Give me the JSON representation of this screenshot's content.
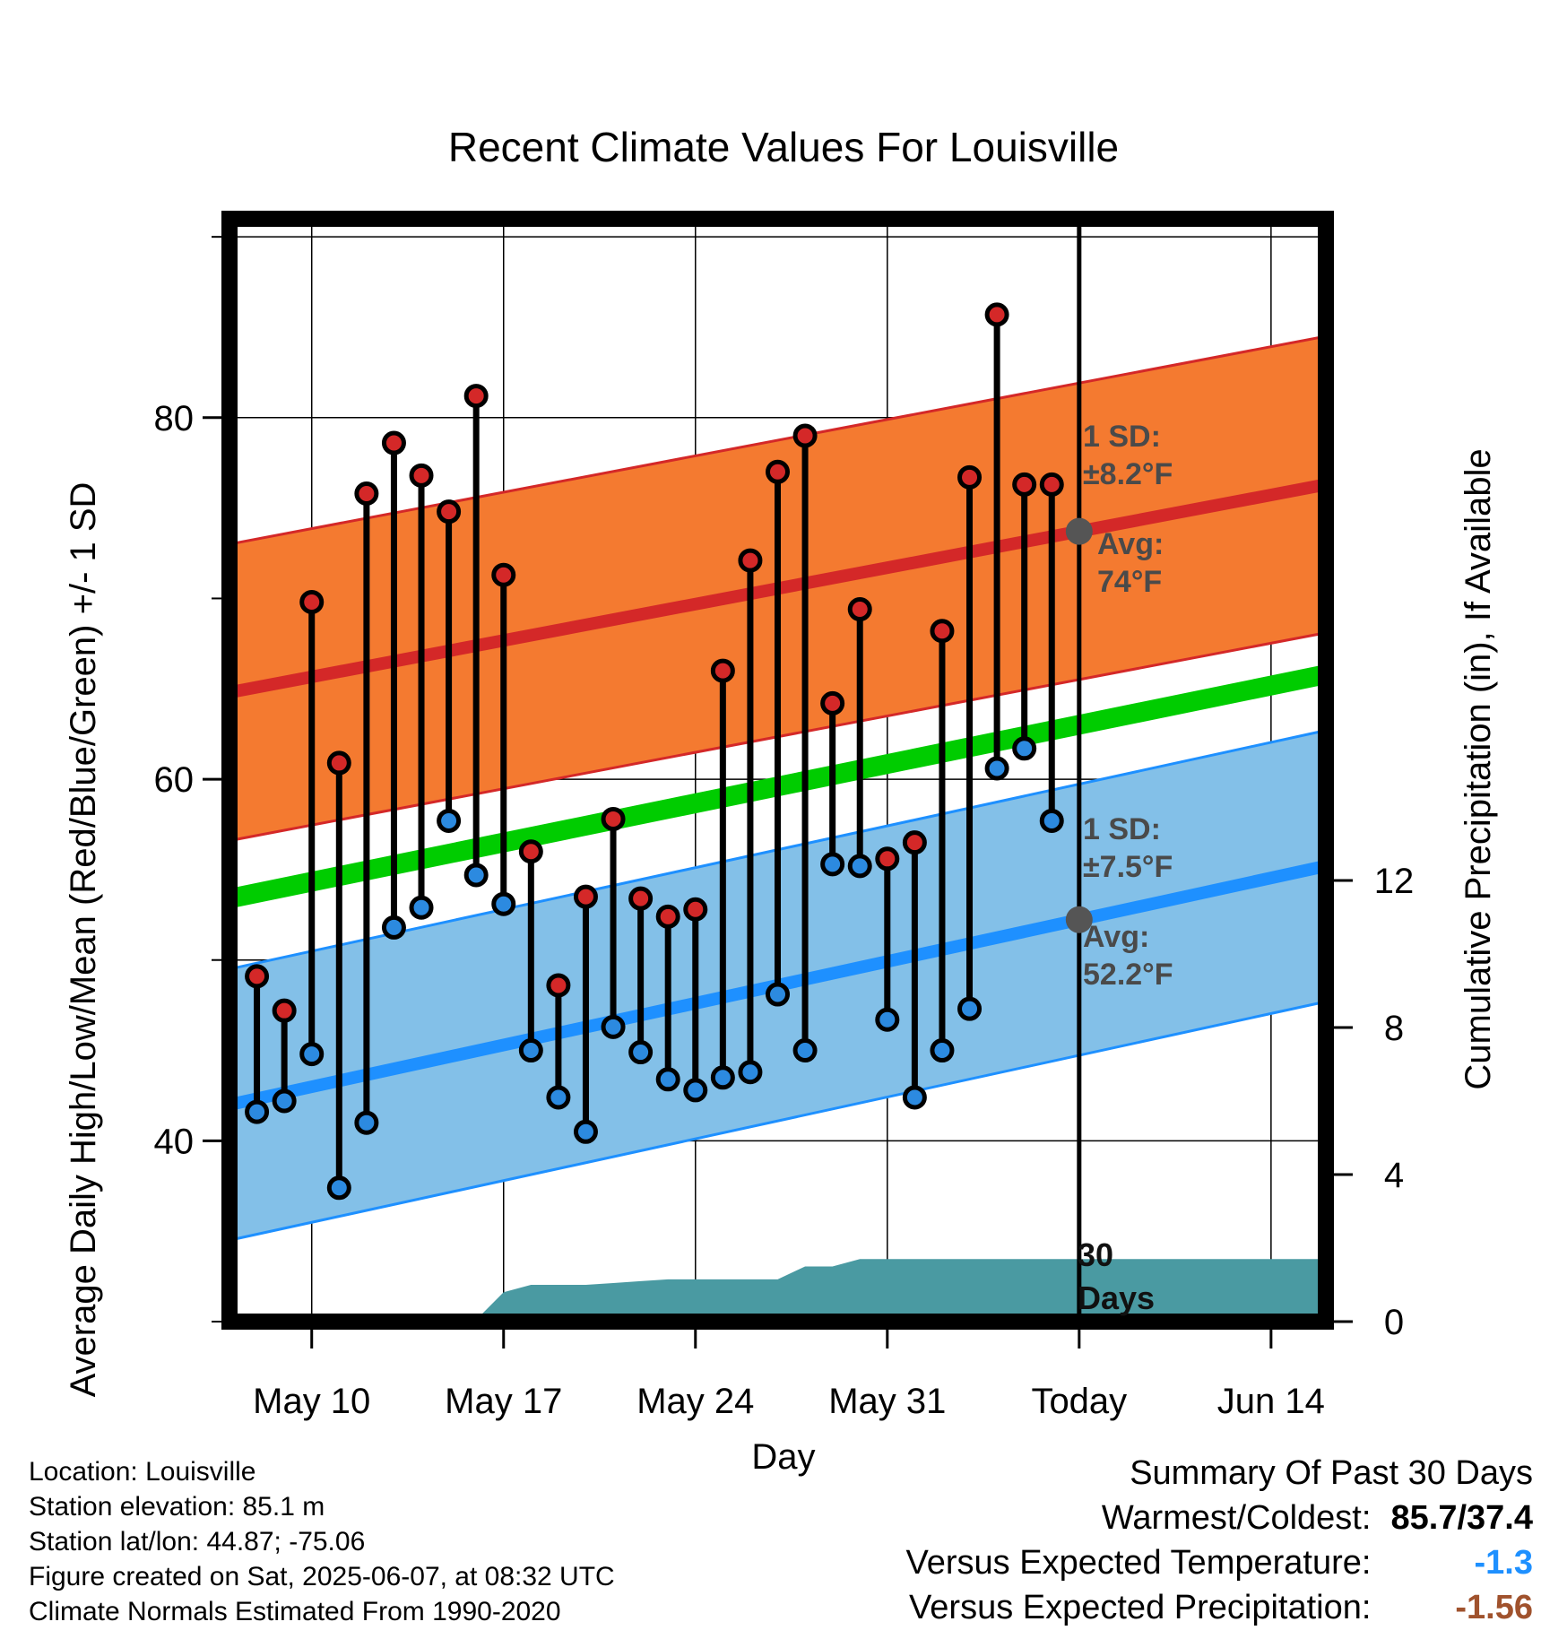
{
  "chart_data": {
    "type": "line",
    "title": "Recent Climate Values For Louisville",
    "xlabel": "Day",
    "ylabel": "Average Daily High/Low/Mean (Red/Blue/Green) +/- 1 SD",
    "y2label": "Cumulative Precipitation (in), If Available",
    "x_tick_labels": [
      "May 10",
      "May 17",
      "May 24",
      "May 31",
      "Today",
      "Jun 14"
    ],
    "x_tick_days": [
      10,
      17,
      24,
      31,
      38,
      45
    ],
    "xlim_days": [
      7,
      47
    ],
    "today_day": 38,
    "ylim": [
      30,
      91
    ],
    "y_ticks": [
      40,
      60,
      80
    ],
    "y2lim": [
      0,
      30
    ],
    "y2_ticks": [
      0,
      4,
      8,
      12
    ],
    "grid": true,
    "normal_high": {
      "start": 64.8,
      "end": 76.3,
      "sd": 8.2
    },
    "normal_low": {
      "start": 42.0,
      "end": 55.2,
      "sd": 7.5
    },
    "normal_mean": {
      "start": 53.4,
      "end": 65.8
    },
    "days": [
      8,
      9,
      10,
      11,
      12,
      13,
      14,
      15,
      16,
      17,
      18,
      19,
      20,
      21,
      22,
      23,
      24,
      25,
      26,
      27,
      28,
      29,
      30,
      31,
      32,
      33,
      34,
      35,
      36,
      37
    ],
    "highs": [
      49.1,
      47.2,
      69.8,
      60.9,
      75.8,
      78.6,
      76.8,
      74.8,
      81.2,
      71.3,
      56.0,
      48.6,
      53.5,
      57.8,
      53.4,
      52.4,
      52.8,
      66.0,
      72.1,
      77.0,
      79.0,
      64.2,
      69.4,
      55.6,
      56.5,
      68.2,
      76.7,
      85.7,
      76.3,
      76.3
    ],
    "lows": [
      41.6,
      42.2,
      44.8,
      37.4,
      41.0,
      51.8,
      52.9,
      57.7,
      54.7,
      53.1,
      45.0,
      42.4,
      40.5,
      46.3,
      44.9,
      43.4,
      42.8,
      43.5,
      43.8,
      48.1,
      45.0,
      55.3,
      55.2,
      46.7,
      42.4,
      45.0,
      47.3,
      60.6,
      61.7,
      57.7
    ],
    "precip_days": [
      7,
      8,
      9,
      10,
      11,
      12,
      13,
      14,
      15,
      16,
      17,
      18,
      19,
      20,
      21,
      22,
      23,
      24,
      25,
      26,
      27,
      28,
      29,
      30,
      31,
      32,
      33,
      34,
      35,
      36,
      37,
      38,
      39,
      40,
      41,
      42,
      43,
      44,
      45,
      46,
      47
    ],
    "precip_cumulative": [
      0,
      0,
      0,
      0.05,
      0.05,
      0.05,
      0.05,
      0.05,
      0.05,
      0.05,
      0.8,
      1.0,
      1.0,
      1.0,
      1.05,
      1.1,
      1.15,
      1.15,
      1.15,
      1.15,
      1.15,
      1.5,
      1.5,
      1.7,
      1.7,
      1.7,
      1.7,
      1.7,
      1.7,
      1.7,
      1.7,
      1.7,
      1.7,
      1.7,
      1.7,
      1.7,
      1.7,
      1.7,
      1.7,
      1.7,
      1.7
    ],
    "annotations": {
      "high_sd_label": "1 SD:",
      "high_sd_value": "±8.2°F",
      "high_avg_label": "Avg:",
      "high_avg_value": "74°F",
      "low_sd_label": "1 SD:",
      "low_sd_value": "±7.5°F",
      "low_avg_label": "Avg:",
      "low_avg_value": "52.2°F",
      "days_line1": "30",
      "days_line2": "Days"
    },
    "colors": {
      "high_band": "#f47a30",
      "high_line": "#d42828",
      "low_band": "#83c0e8",
      "low_line": "#1e90ff",
      "mean_line": "#00cc00",
      "precip": "#4a9aa2",
      "high_marker": "#d42828",
      "low_marker": "#2c8ae0",
      "today_marker": "#555555"
    }
  },
  "info": {
    "location": "Location: Louisville",
    "elevation": "Station elevation: 85.1 m",
    "latlon": "Station lat/lon: 44.87; -75.06",
    "created": "Figure created on Sat, 2025-06-07, at 08:32 UTC",
    "normals": "Climate Normals Estimated From 1990-2020"
  },
  "summary": {
    "title": "Summary Of Past 30 Days",
    "warmest_label": "Warmest/Coldest:",
    "warmest_value": "85.7/37.4",
    "temp_label": "Versus Expected Temperature:",
    "temp_value": "-1.3",
    "precip_label": "Versus Expected Precipitation:",
    "precip_value": "-1.56"
  }
}
